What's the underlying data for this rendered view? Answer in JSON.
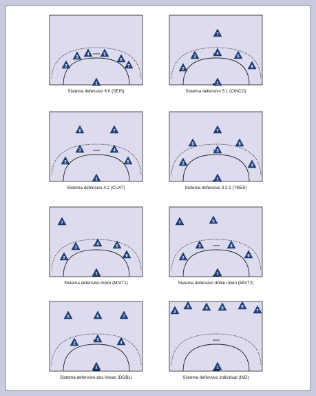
{
  "panels": [
    {
      "caption": "Sistema defensivo 6:0 (SEIS)",
      "players": [
        "2",
        "3",
        "4",
        "5",
        "6",
        "7",
        "1"
      ]
    },
    {
      "caption": "Sistema defensivo 5:1 (CINCO)",
      "players": [
        "7",
        "3",
        "4",
        "5",
        "2",
        "6",
        "1"
      ]
    },
    {
      "caption": "Sistema defensivo 4:2 (CUAT)",
      "players": [
        "6",
        "7",
        "3",
        "4",
        "2",
        "5",
        "1"
      ]
    },
    {
      "caption": "Sistema defensivo 3:2:1 (TRES)",
      "players": [
        "7",
        "5",
        "6",
        "3",
        "2",
        "4",
        "1"
      ]
    },
    {
      "caption": "Sistema defensivo mixto (MIXT1)",
      "players": [
        "7",
        "3",
        "4",
        "5",
        "2",
        "6",
        "1"
      ]
    },
    {
      "caption": "Sistema defensivo doble mixto (MIXT2)",
      "players": [
        "7",
        "5",
        "3",
        "4",
        "2",
        "6",
        "1"
      ]
    },
    {
      "caption": "Sistema defensivo dos líneas (DOBL)",
      "players": [
        "5",
        "6",
        "7",
        "2",
        "3",
        "4",
        "1"
      ]
    },
    {
      "caption": "Sistema defensivo individual (IND)",
      "players": [
        "2",
        "3",
        "4",
        "5",
        "6",
        "7",
        "1"
      ]
    }
  ]
}
